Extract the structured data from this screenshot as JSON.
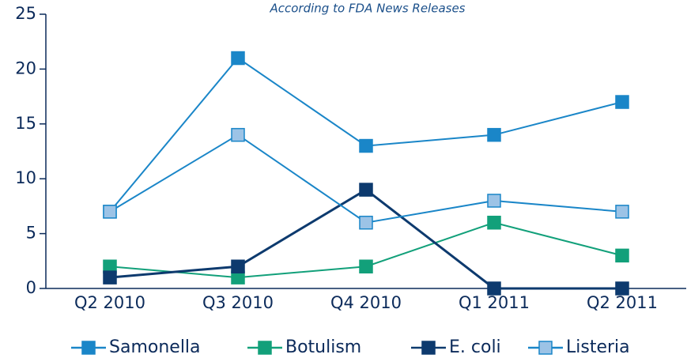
{
  "chart_data": {
    "type": "line",
    "subtitle": "According to FDA News Releases",
    "categories": [
      "Q2 2010",
      "Q3 2010",
      "Q4 2010",
      "Q1 2011",
      "Q2 2011"
    ],
    "series": [
      {
        "name": "Samonella",
        "color": "#1a86c8",
        "values": [
          7,
          21,
          13,
          14,
          17
        ]
      },
      {
        "name": "Botulism",
        "color": "#12a07a",
        "values": [
          2,
          1,
          2,
          6,
          3
        ]
      },
      {
        "name": "E. coli",
        "color": "#0d3a6e",
        "values": [
          1,
          2,
          9,
          0,
          0
        ]
      },
      {
        "name": "Listeria",
        "color": "#1a86c8",
        "marker_fill": "#9cc3e6",
        "values": [
          7,
          14,
          6,
          8,
          7
        ]
      }
    ],
    "ylim": [
      0,
      25
    ],
    "yticks": [
      0,
      5,
      10,
      15,
      20,
      25
    ],
    "legend": "bottom"
  }
}
